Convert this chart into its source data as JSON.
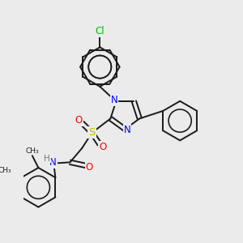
{
  "background_color": "#ebebeb",
  "bond_color": "#1a1a1a",
  "atom_colors": {
    "N": "#0000ff",
    "O": "#ff0000",
    "S": "#bbbb00",
    "Cl": "#00bb00",
    "H": "#777777",
    "C": "#1a1a1a"
  },
  "figsize": [
    3.0,
    3.0
  ],
  "dpi": 100,
  "lw": 1.4,
  "fontsize": 8.5
}
